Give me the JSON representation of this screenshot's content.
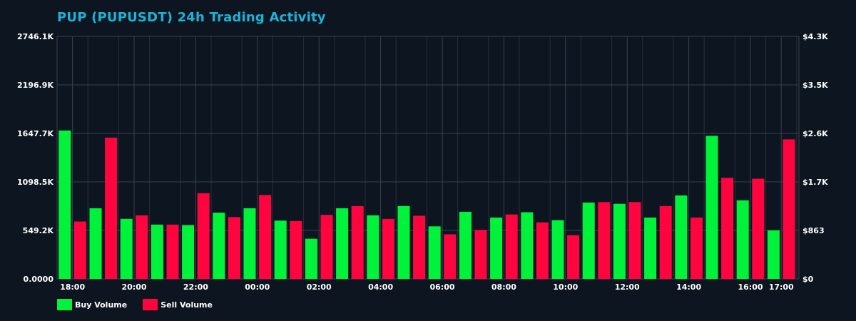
{
  "title": "PUP (PUPUSDT) 24h Trading Activity",
  "colors": {
    "background": "#0c1520",
    "buy": "#00f33a",
    "sell": "#ff0540",
    "title": "#1ab4d8",
    "grid": "#3a434d",
    "axis_text": "#ffffff"
  },
  "chart_data": {
    "type": "bar",
    "title": "PUP (PUPUSDT) 24h Trading Activity",
    "grid": true,
    "legend_placement": "bottom-left",
    "x_tick_labels": [
      "18:00",
      "20:00",
      "22:00",
      "00:00",
      "02:00",
      "04:00",
      "06:00",
      "08:00",
      "10:00",
      "12:00",
      "14:00",
      "16:00",
      "17:00"
    ],
    "x_tick_index": [
      0.5,
      2.5,
      4.5,
      6.5,
      8.5,
      10.5,
      12.5,
      14.5,
      16.5,
      18.5,
      20.5,
      22.5,
      23.5
    ],
    "y_left_ticks": [
      "0.0000",
      "549.2K",
      "1098.5K",
      "1647.7K",
      "2196.9K",
      "2746.1K"
    ],
    "y_right_ticks": [
      "$0",
      "$863",
      "$1.7K",
      "$2.6K",
      "$3.5K",
      "$4.3K"
    ],
    "ylim": [
      0,
      2746.1
    ],
    "y_unit": "K",
    "series": [
      {
        "name": "Buy Volume",
        "slot": 0,
        "values": [
          1680,
          null,
          800,
          null,
          680,
          null,
          615,
          null,
          610,
          null,
          750,
          null,
          800,
          null,
          660,
          null,
          455,
          null,
          800,
          null,
          720,
          null,
          825,
          null,
          595,
          null,
          760,
          null,
          695,
          null,
          755,
          null,
          665,
          null,
          865,
          null,
          850,
          null,
          695,
          null,
          945,
          null,
          1620,
          null,
          890,
          null,
          550
        ]
      },
      {
        "name": "Sell Volume",
        "slot": 1,
        "values": [
          null,
          650,
          null,
          1600,
          null,
          720,
          null,
          615,
          null,
          970,
          null,
          700,
          null,
          950,
          null,
          655,
          null,
          725,
          null,
          825,
          null,
          680,
          null,
          715,
          null,
          505,
          null,
          555,
          null,
          730,
          null,
          640,
          null,
          495,
          null,
          870,
          null,
          870,
          null,
          825,
          null,
          695,
          null,
          1145,
          null,
          1135,
          null,
          1580
        ]
      }
    ],
    "legend": [
      "Buy Volume",
      "Sell Volume"
    ]
  }
}
